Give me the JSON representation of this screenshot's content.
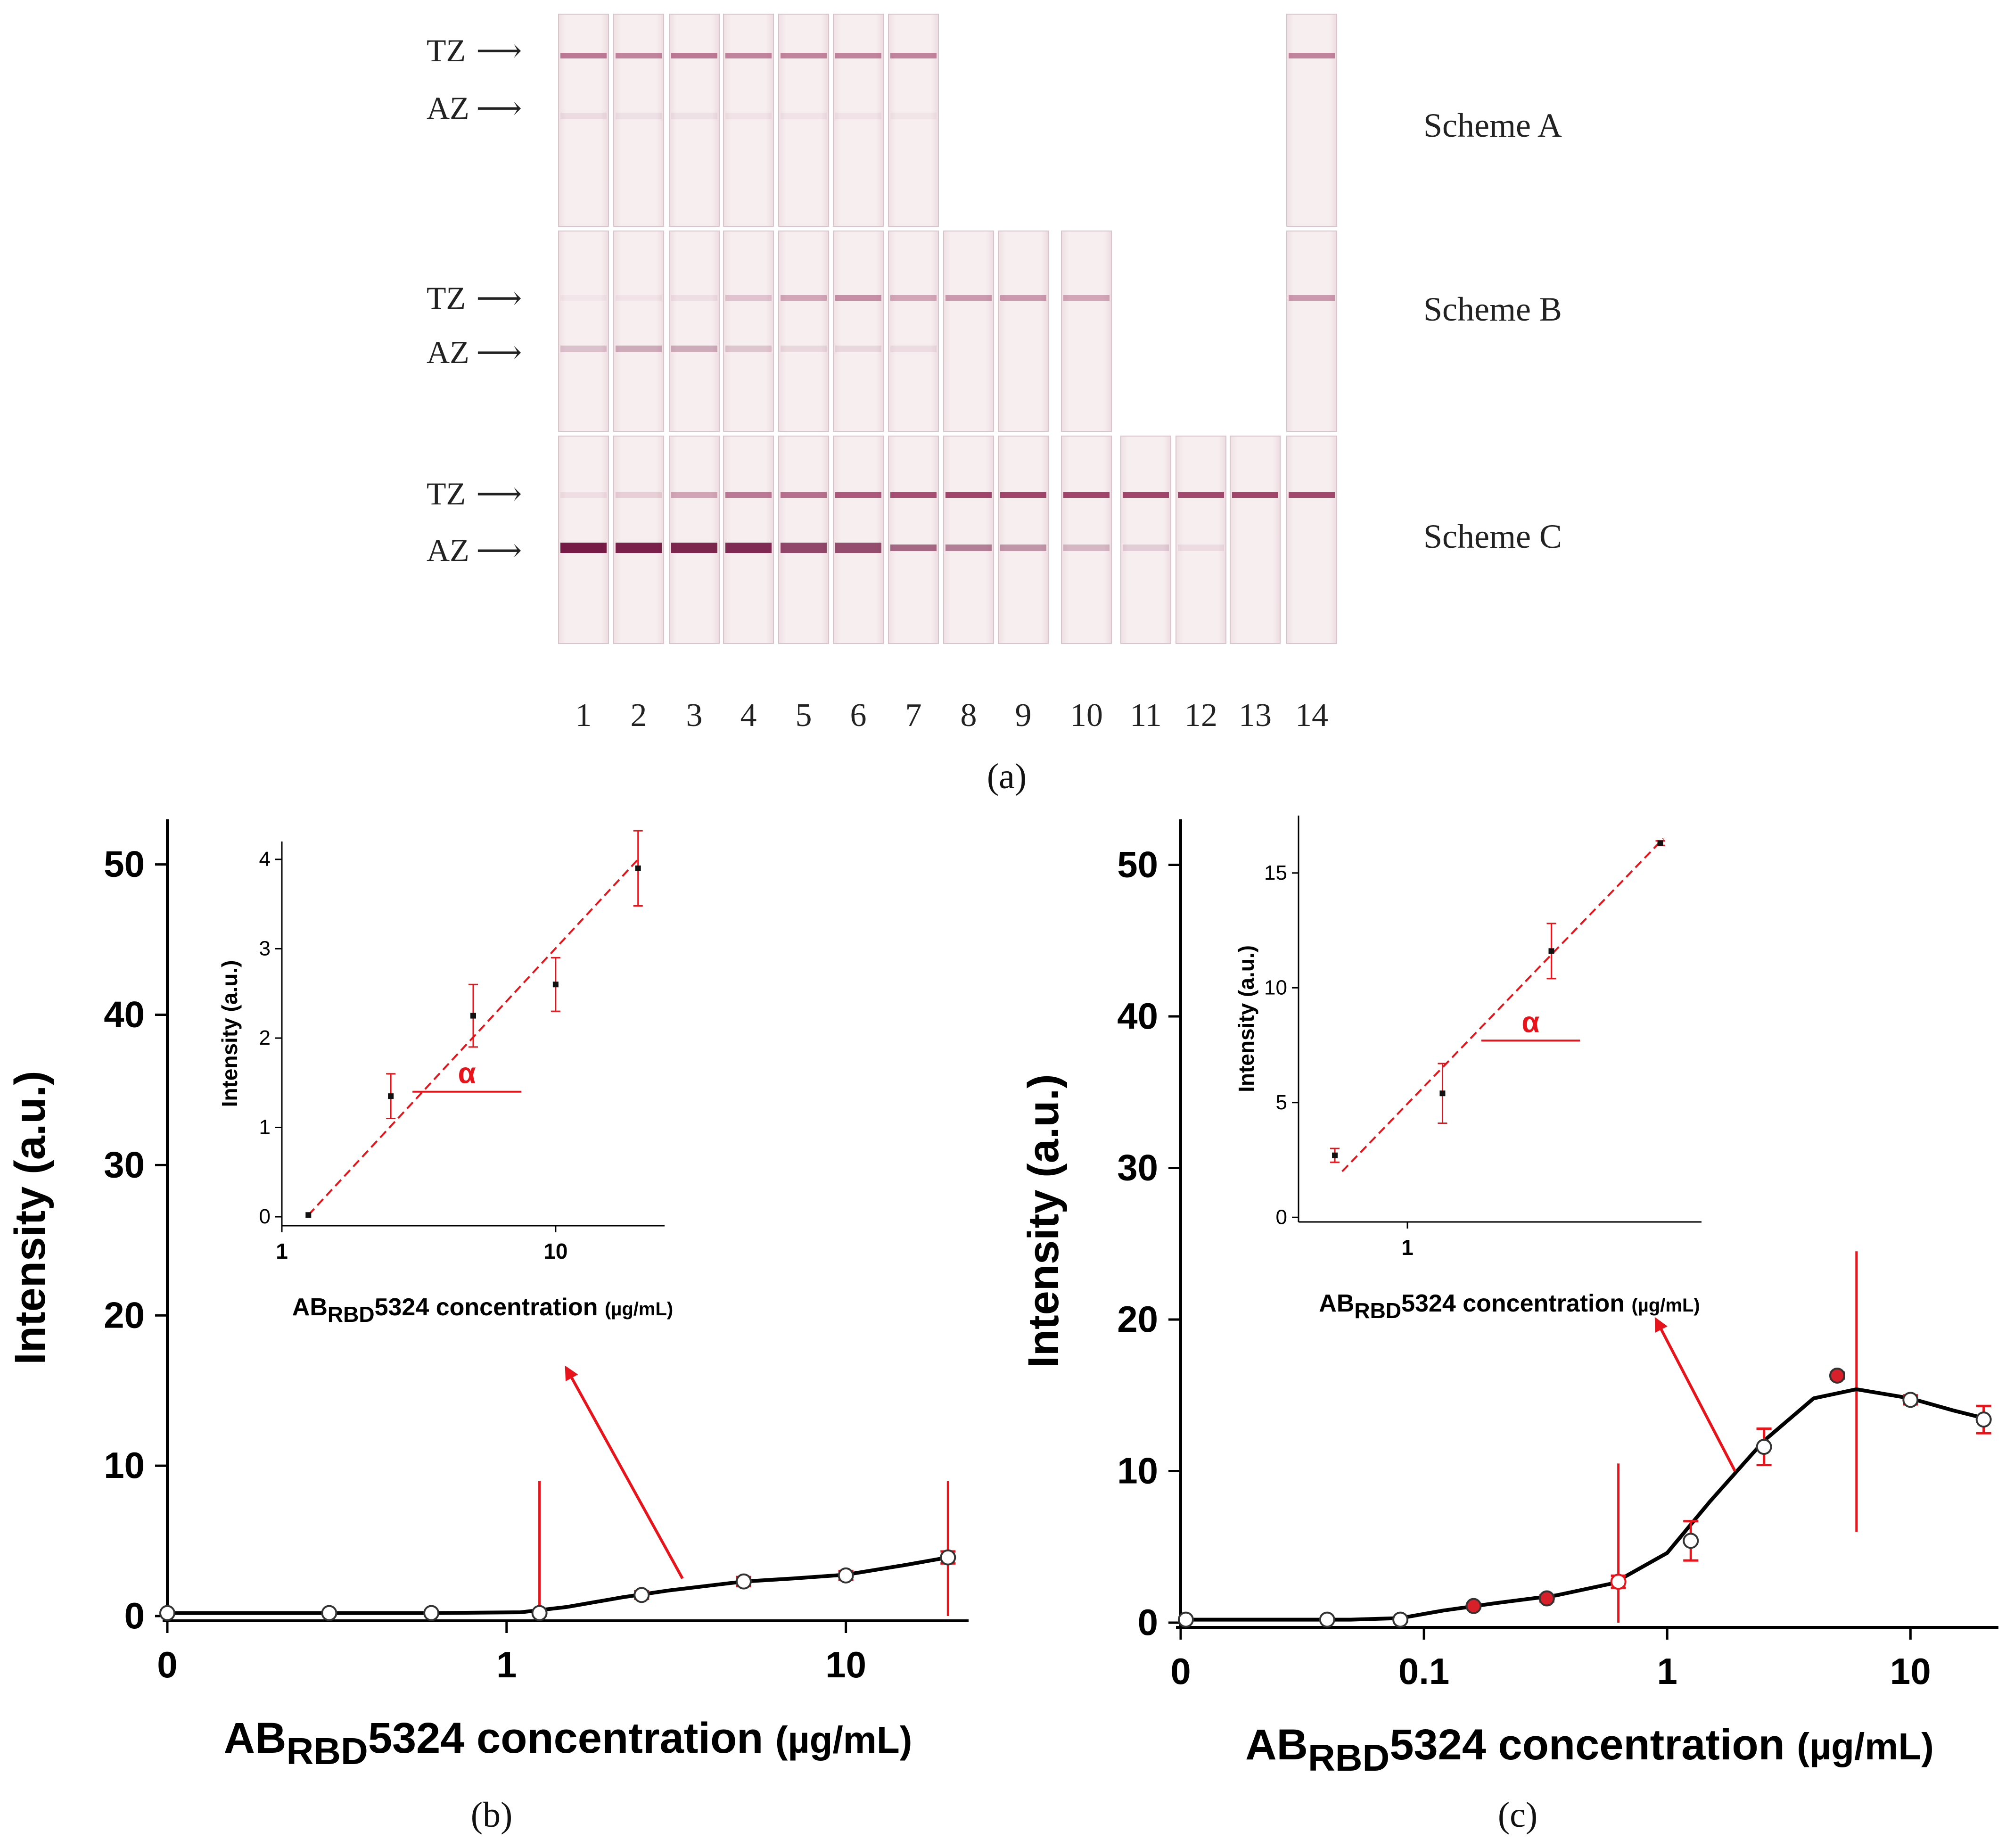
{
  "panel_a": {
    "label": "(a)",
    "lane_numbers": [
      "1",
      "2",
      "3",
      "4",
      "5",
      "6",
      "7",
      "8",
      "9",
      "10",
      "11",
      "12",
      "13",
      "14"
    ],
    "zone_labels": {
      "tz": "TZ",
      "az": "AZ"
    },
    "schemes": [
      {
        "name": "Scheme A",
        "strips": [
          1,
          2,
          3,
          4,
          5,
          6,
          7,
          14
        ],
        "tz_intensity": [
          0.55,
          0.5,
          0.55,
          0.5,
          0.5,
          0.5,
          0.5,
          0.5
        ],
        "az_intensity": [
          0.08,
          0.06,
          0.06,
          0.05,
          0.05,
          0.05,
          0.04,
          0.0
        ]
      },
      {
        "name": "Scheme B",
        "strips": [
          1,
          2,
          3,
          4,
          5,
          6,
          7,
          8,
          9,
          10,
          14
        ],
        "tz_intensity": [
          0.04,
          0.05,
          0.08,
          0.2,
          0.35,
          0.45,
          0.35,
          0.4,
          0.4,
          0.35,
          0.4
        ],
        "az_intensity": [
          0.2,
          0.3,
          0.3,
          0.18,
          0.1,
          0.1,
          0.08,
          0.0,
          0.0,
          0.0,
          0.0
        ]
      },
      {
        "name": "Scheme C",
        "strips": [
          1,
          2,
          3,
          4,
          5,
          6,
          7,
          8,
          9,
          10,
          11,
          12,
          13,
          14
        ],
        "tz_intensity": [
          0.08,
          0.15,
          0.35,
          0.55,
          0.6,
          0.7,
          0.75,
          0.8,
          0.8,
          0.8,
          0.8,
          0.78,
          0.8,
          0.78
        ],
        "az_intensity": [
          0.95,
          0.92,
          0.9,
          0.88,
          0.75,
          0.72,
          0.6,
          0.5,
          0.4,
          0.25,
          0.15,
          0.08,
          0.0,
          0.0
        ]
      }
    ]
  },
  "chart_data": [
    {
      "id": "b",
      "panel_label": "(b)",
      "type": "line",
      "title": "",
      "xlabel_parts": [
        "AB",
        "RBD",
        "5324 concentration ",
        "(µg/mL)"
      ],
      "ylabel": "Intensity (a.u.)",
      "x_scale": "log",
      "xlim": [
        0.1,
        23
      ],
      "ylim": [
        0,
        53
      ],
      "x_ticks": [
        {
          "v": 0.1,
          "label": "0"
        },
        {
          "v": 1,
          "label": "1"
        },
        {
          "v": 10,
          "label": "10"
        }
      ],
      "y_ticks": [
        0,
        10,
        20,
        30,
        40,
        50
      ],
      "points": [
        {
          "x": 0.1,
          "y": 0.2,
          "err": 0
        },
        {
          "x": 0.3,
          "y": 0.2,
          "err": 0
        },
        {
          "x": 0.6,
          "y": 0.2,
          "err": 0
        },
        {
          "x": 1.25,
          "y": 0.2,
          "err": 0
        },
        {
          "x": 2.5,
          "y": 1.4,
          "err": 0.25
        },
        {
          "x": 5,
          "y": 2.3,
          "err": 0.3
        },
        {
          "x": 10,
          "y": 2.7,
          "err": 0.3
        },
        {
          "x": 20,
          "y": 3.9,
          "err": 0.4
        }
      ],
      "curve": [
        [
          0.1,
          0.2
        ],
        [
          0.6,
          0.2
        ],
        [
          1.1,
          0.25
        ],
        [
          1.5,
          0.6
        ],
        [
          2.2,
          1.25
        ],
        [
          3,
          1.7
        ],
        [
          5,
          2.3
        ],
        [
          7,
          2.5
        ],
        [
          10,
          2.75
        ],
        [
          15,
          3.4
        ],
        [
          20,
          3.9
        ]
      ],
      "vlines": [
        {
          "x": 1.25,
          "y0": 0,
          "y1": 9
        },
        {
          "x": 20,
          "y0": 0,
          "y1": 9
        }
      ],
      "arrow": {
        "from": [
          3.3,
          2.5
        ],
        "to": [
          1.5,
          16.5
        ]
      },
      "inset": {
        "xlabel_parts": [
          "AB",
          "RBD",
          "5324 concentration ",
          "(µg/mL)"
        ],
        "ylabel": "Intensity (a.u.)",
        "x_scale": "log",
        "xlim": [
          1,
          25
        ],
        "ylim": [
          -0.1,
          4.2
        ],
        "x_ticks": [
          {
            "v": 1,
            "label": "1"
          },
          {
            "v": 10,
            "label": "10"
          }
        ],
        "y_ticks": [
          0,
          1,
          2,
          3,
          4
        ],
        "points": [
          {
            "x": 1.25,
            "y": 0.02,
            "err": 0
          },
          {
            "x": 2.5,
            "y": 1.35,
            "err": 0.25
          },
          {
            "x": 5,
            "y": 2.25,
            "err": 0.35
          },
          {
            "x": 10,
            "y": 2.6,
            "err": 0.3
          },
          {
            "x": 20,
            "y": 3.9,
            "err": 0.42
          }
        ],
        "fit_line": [
          [
            1.25,
            0.02
          ],
          [
            20,
            4.0
          ]
        ],
        "angle_marker": {
          "label": "α",
          "x0": 3.0,
          "x1": 7.5,
          "y": 1.4
        }
      }
    },
    {
      "id": "c",
      "panel_label": "(c)",
      "type": "line",
      "title": "",
      "xlabel_parts": [
        "AB",
        "RBD",
        "5324 concentration ",
        "(µg/mL)"
      ],
      "ylabel": "Intensity (a.u.)",
      "x_scale": "log",
      "xlim": [
        0.01,
        23
      ],
      "ylim": [
        0,
        53
      ],
      "x_ticks": [
        {
          "v": 0.01,
          "label": "0"
        },
        {
          "v": 0.1,
          "label": "0.1"
        },
        {
          "v": 1,
          "label": "1"
        },
        {
          "v": 10,
          "label": "10"
        }
      ],
      "y_ticks": [
        0,
        10,
        20,
        30,
        40,
        50
      ],
      "points": [
        {
          "x": 0.0105,
          "y": 0.2,
          "err": 0,
          "style": "open"
        },
        {
          "x": 0.04,
          "y": 0.2,
          "err": 0,
          "style": "open"
        },
        {
          "x": 0.08,
          "y": 0.2,
          "err": 0,
          "style": "open"
        },
        {
          "x": 0.16,
          "y": 1.1,
          "err": 0.15,
          "style": "red"
        },
        {
          "x": 0.32,
          "y": 1.6,
          "err": 0.2,
          "style": "red"
        },
        {
          "x": 0.63,
          "y": 2.7,
          "err": 0.4,
          "style": "openred"
        },
        {
          "x": 1.25,
          "y": 5.4,
          "err": 1.3,
          "style": "open"
        },
        {
          "x": 2.5,
          "y": 11.6,
          "err": 1.2,
          "style": "open"
        },
        {
          "x": 5,
          "y": 16.3,
          "err": 0.2,
          "style": "red"
        },
        {
          "x": 10,
          "y": 14.7,
          "err": 0.3,
          "style": "open"
        },
        {
          "x": 20,
          "y": 13.4,
          "err": 0.9,
          "style": "open"
        }
      ],
      "curve": [
        [
          0.0105,
          0.2
        ],
        [
          0.05,
          0.2
        ],
        [
          0.08,
          0.3
        ],
        [
          0.12,
          0.8
        ],
        [
          0.2,
          1.3
        ],
        [
          0.35,
          1.8
        ],
        [
          0.6,
          2.6
        ],
        [
          1,
          4.6
        ],
        [
          1.5,
          8
        ],
        [
          2.5,
          12
        ],
        [
          4,
          14.8
        ],
        [
          6,
          15.4
        ],
        [
          10,
          14.8
        ],
        [
          15,
          14
        ],
        [
          20,
          13.5
        ]
      ],
      "vlines": [
        {
          "x": 0.63,
          "y0": 0,
          "y1": 10.5
        },
        {
          "x": 6,
          "y0": 6,
          "y1": 24.5
        }
      ],
      "arrow": {
        "from": [
          1.9,
          10
        ],
        "to": [
          0.9,
          20
        ]
      },
      "inset": {
        "xlabel_parts": [
          "AB",
          "RBD",
          "5324 concentration ",
          "(µg/mL)"
        ],
        "ylabel": "Intensity (a.u.)",
        "x_scale": "log",
        "xlim": [
          0.5,
          6.5
        ],
        "ylim": [
          -0.2,
          17.5
        ],
        "x_ticks": [
          {
            "v": 1,
            "label": "1"
          }
        ],
        "y_ticks": [
          0,
          5,
          10,
          15
        ],
        "points": [
          {
            "x": 0.63,
            "y": 2.7,
            "err": 0.3
          },
          {
            "x": 1.25,
            "y": 5.4,
            "err": 1.3
          },
          {
            "x": 2.5,
            "y": 11.6,
            "err": 1.2
          },
          {
            "x": 5,
            "y": 16.3,
            "err": 0.1
          }
        ],
        "fit_line": [
          [
            0.66,
            2.0
          ],
          [
            5.1,
            16.5
          ]
        ],
        "angle_marker": {
          "label": "α",
          "x0": 1.6,
          "x1": 3.0,
          "y": 7.7
        }
      }
    }
  ]
}
